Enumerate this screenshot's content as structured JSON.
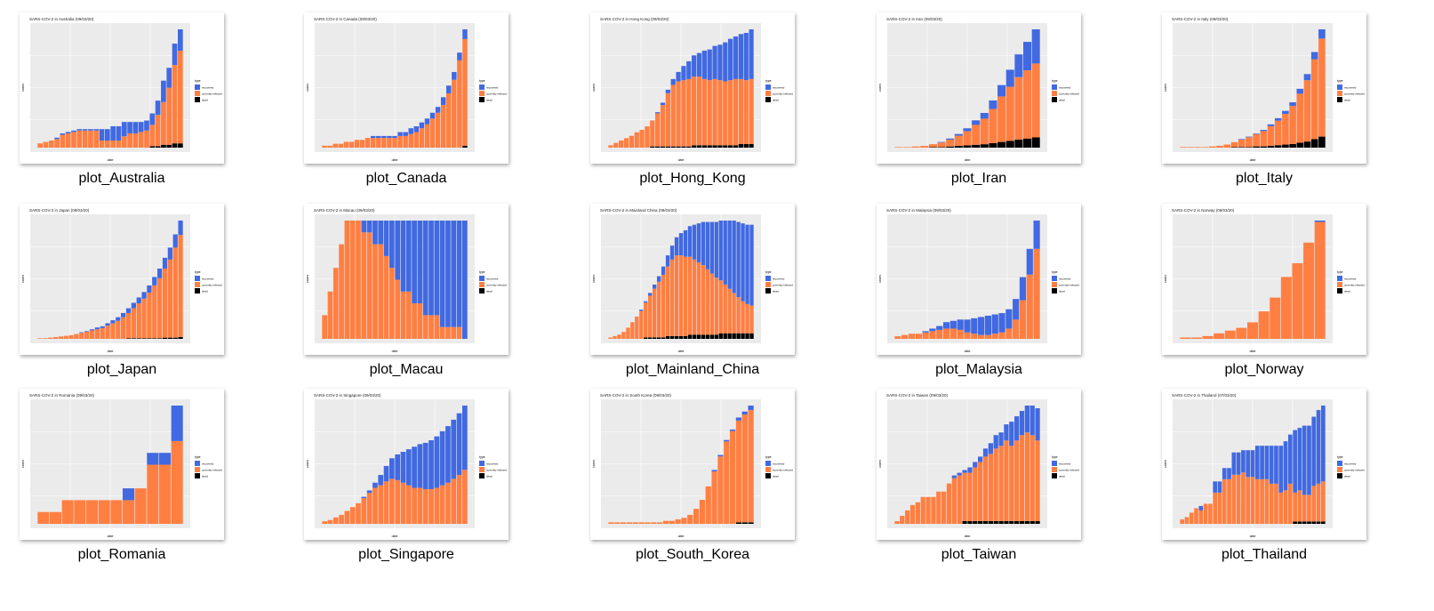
{
  "legend": {
    "title": "type",
    "items": [
      "recovered",
      "currently infected",
      "dead"
    ]
  },
  "axis": {
    "xlabel": "date",
    "ylabel": "cases"
  },
  "colors": {
    "recovered": "#4169e1",
    "infected": "#ff7f42",
    "dead": "#000000",
    "panel": "#ebebeb"
  },
  "files": [
    {
      "label": "plot_Australia",
      "chart_data": {
        "type": "bar",
        "title": "SARS-COV-2 in Australia (09/03/20)",
        "infected": [
          3,
          4,
          5,
          6,
          9,
          10,
          11,
          12,
          12,
          12,
          12,
          5,
          5,
          5,
          5,
          8,
          10,
          10,
          11,
          12,
          15,
          22,
          30,
          40,
          55,
          65
        ],
        "recovered": [
          0,
          0,
          0,
          1,
          1,
          1,
          1,
          1,
          1,
          1,
          1,
          8,
          8,
          10,
          10,
          10,
          8,
          8,
          7,
          7,
          8,
          10,
          15,
          14,
          15,
          15
        ],
        "dead": [
          0,
          0,
          0,
          0,
          0,
          0,
          0,
          0,
          0,
          0,
          0,
          0,
          0,
          0,
          0,
          0,
          0,
          0,
          0,
          0,
          1,
          1,
          2,
          2,
          3,
          3
        ]
      }
    },
    {
      "label": "plot_Canada",
      "chart_data": {
        "type": "bar",
        "title": "SARS-COV-2 in Canada (09/03/20)",
        "infected": [
          1,
          1,
          2,
          2,
          3,
          3,
          4,
          4,
          5,
          5,
          5,
          5,
          5,
          5,
          6,
          6,
          7,
          8,
          10,
          12,
          15,
          18,
          22,
          28,
          35,
          45,
          55
        ],
        "recovered": [
          0,
          0,
          0,
          0,
          0,
          0,
          0,
          0,
          0,
          1,
          1,
          1,
          1,
          1,
          2,
          2,
          3,
          3,
          3,
          3,
          3,
          3,
          4,
          4,
          4,
          4,
          5
        ],
        "dead": [
          0,
          0,
          0,
          0,
          0,
          0,
          0,
          0,
          0,
          0,
          0,
          0,
          0,
          0,
          0,
          0,
          0,
          0,
          0,
          0,
          0,
          0,
          0,
          0,
          0,
          0,
          1
        ]
      }
    },
    {
      "label": "plot_Hong_Kong",
      "chart_data": {
        "type": "bar",
        "title": "SARS-COV-2 in Hong Kong (09/03/20)",
        "infected": [
          2,
          4,
          6,
          8,
          10,
          13,
          15,
          18,
          22,
          28,
          35,
          45,
          52,
          55,
          56,
          57,
          58,
          58,
          56,
          55,
          56,
          55,
          54,
          55,
          56,
          55,
          54,
          55
        ],
        "recovered": [
          0,
          0,
          0,
          0,
          0,
          0,
          0,
          0,
          0,
          1,
          2,
          3,
          5,
          8,
          12,
          15,
          18,
          20,
          24,
          26,
          28,
          30,
          33,
          35,
          36,
          38,
          40,
          42
        ],
        "dead": [
          0,
          0,
          0,
          0,
          0,
          0,
          0,
          0,
          1,
          1,
          1,
          1,
          1,
          1,
          1,
          1,
          2,
          2,
          2,
          2,
          2,
          2,
          2,
          2,
          2,
          3,
          3,
          3
        ]
      }
    },
    {
      "label": "plot_Iran",
      "chart_data": {
        "type": "bar",
        "title": "SARS-COV-2 in Iran (09/03/20)",
        "infected": [
          1,
          1,
          2,
          3,
          5,
          8,
          12,
          18,
          25,
          35,
          45,
          60,
          80,
          95,
          110,
          120,
          130
        ],
        "recovered": [
          0,
          0,
          0,
          0,
          0,
          1,
          2,
          3,
          5,
          8,
          10,
          15,
          20,
          30,
          40,
          50,
          60
        ],
        "dead": [
          0,
          0,
          0,
          0,
          1,
          1,
          2,
          3,
          4,
          5,
          6,
          8,
          10,
          12,
          14,
          16,
          18
        ]
      }
    },
    {
      "label": "plot_Italy",
      "chart_data": {
        "type": "bar",
        "title": "SARS-COV-2 in Italy (09/03/20)",
        "infected": [
          1,
          1,
          1,
          1,
          2,
          3,
          5,
          8,
          12,
          16,
          20,
          25,
          32,
          40,
          50,
          62,
          80,
          100,
          130,
          160
        ],
        "recovered": [
          0,
          0,
          0,
          0,
          0,
          0,
          0,
          0,
          1,
          1,
          1,
          2,
          3,
          4,
          5,
          6,
          8,
          10,
          12,
          15
        ],
        "dead": [
          0,
          0,
          0,
          0,
          0,
          0,
          0,
          1,
          1,
          1,
          2,
          2,
          3,
          4,
          5,
          6,
          8,
          10,
          14,
          18
        ]
      }
    },
    {
      "label": "plot_Japan",
      "chart_data": {
        "type": "bar",
        "title": "SARS-COV-2 in Japan (09/03/20)",
        "infected": [
          1,
          1,
          2,
          3,
          4,
          5,
          6,
          8,
          10,
          12,
          14,
          16,
          18,
          22,
          26,
          30,
          36,
          42,
          50,
          58,
          66,
          76,
          88,
          100,
          115,
          130,
          150,
          170
        ],
        "recovered": [
          0,
          0,
          0,
          0,
          0,
          0,
          0,
          0,
          1,
          1,
          2,
          3,
          3,
          4,
          5,
          6,
          7,
          8,
          9,
          10,
          11,
          12,
          14,
          16,
          18,
          20,
          22,
          24
        ],
        "dead": [
          0,
          0,
          0,
          0,
          0,
          0,
          0,
          0,
          0,
          0,
          0,
          0,
          0,
          0,
          0,
          0,
          0,
          1,
          1,
          1,
          1,
          1,
          1,
          1,
          2,
          2,
          2,
          3
        ]
      }
    },
    {
      "label": "plot_Macau",
      "chart_data": {
        "type": "bar",
        "title": "SARS-COV-2 in Macau (09/03/20)",
        "infected": [
          2,
          4,
          6,
          8,
          10,
          10,
          10,
          9,
          9,
          8,
          8,
          7,
          6,
          5,
          4,
          4,
          3,
          3,
          2,
          2,
          2,
          1,
          1,
          1,
          1,
          0
        ],
        "recovered": [
          0,
          0,
          0,
          0,
          0,
          0,
          0,
          1,
          1,
          2,
          2,
          3,
          4,
          5,
          6,
          6,
          7,
          7,
          8,
          8,
          8,
          9,
          9,
          9,
          9,
          10
        ],
        "dead": [
          0,
          0,
          0,
          0,
          0,
          0,
          0,
          0,
          0,
          0,
          0,
          0,
          0,
          0,
          0,
          0,
          0,
          0,
          0,
          0,
          0,
          0,
          0,
          0,
          0,
          0
        ]
      }
    },
    {
      "label": "plot_Mainland_China",
      "chart_data": {
        "type": "bar",
        "title": "SARS-COV-2 in Mainland China (09/03/20)",
        "infected": [
          1,
          2,
          3,
          5,
          8,
          12,
          16,
          20,
          25,
          30,
          35,
          40,
          45,
          50,
          55,
          58,
          58,
          57,
          56,
          54,
          52,
          50,
          47,
          44,
          41,
          38,
          35,
          32,
          29,
          26,
          23,
          21,
          20
        ],
        "recovered": [
          0,
          0,
          0,
          0,
          0,
          0,
          0,
          1,
          1,
          2,
          3,
          4,
          6,
          8,
          10,
          13,
          16,
          19,
          22,
          25,
          28,
          31,
          34,
          37,
          40,
          43,
          46,
          49,
          52,
          54,
          56,
          57,
          58
        ],
        "dead": [
          0,
          0,
          0,
          0,
          0,
          0,
          0,
          0,
          1,
          1,
          1,
          1,
          1,
          2,
          2,
          2,
          2,
          2,
          3,
          3,
          3,
          3,
          3,
          3,
          3,
          4,
          4,
          4,
          4,
          4,
          4,
          4,
          4
        ]
      }
    },
    {
      "label": "plot_Malaysia",
      "chart_data": {
        "type": "bar",
        "title": "SARS-COV-2 in Malaysia (09/03/20)",
        "infected": [
          2,
          3,
          4,
          4,
          5,
          6,
          7,
          8,
          8,
          7,
          5,
          4,
          3,
          3,
          4,
          5,
          8,
          15,
          30,
          50,
          70
        ],
        "recovered": [
          0,
          0,
          0,
          0,
          1,
          2,
          3,
          5,
          6,
          8,
          10,
          12,
          14,
          15,
          15,
          15,
          15,
          16,
          18,
          20,
          22
        ],
        "dead": [
          0,
          0,
          0,
          0,
          0,
          0,
          0,
          0,
          0,
          0,
          0,
          0,
          0,
          0,
          0,
          0,
          0,
          0,
          0,
          0,
          0
        ]
      }
    },
    {
      "label": "plot_Norway",
      "chart_data": {
        "type": "bar",
        "title": "SARS-COV-2 in Norway (09/03/20)",
        "infected": [
          1,
          1,
          2,
          4,
          6,
          8,
          12,
          20,
          30,
          45,
          55,
          70,
          85
        ],
        "recovered": [
          0,
          0,
          0,
          0,
          0,
          0,
          0,
          0,
          0,
          0,
          0,
          0,
          1
        ],
        "dead": [
          0,
          0,
          0,
          0,
          0,
          0,
          0,
          0,
          0,
          0,
          0,
          0,
          0
        ]
      }
    },
    {
      "label": "plot_Romania",
      "chart_data": {
        "type": "bar",
        "title": "SARS-COV-2 in Romania (09/03/20)",
        "infected": [
          1,
          1,
          2,
          2,
          2,
          2,
          2,
          2,
          3,
          5,
          5,
          7
        ],
        "recovered": [
          0,
          0,
          0,
          0,
          0,
          0,
          0,
          1,
          0,
          1,
          1,
          3
        ],
        "dead": [
          0,
          0,
          0,
          0,
          0,
          0,
          0,
          0,
          0,
          0,
          0,
          0
        ]
      }
    },
    {
      "label": "plot_Singapore",
      "chart_data": {
        "type": "bar",
        "title": "SARS-COV-2 in Singapore (09/03/20)",
        "infected": [
          2,
          3,
          5,
          7,
          10,
          13,
          16,
          20,
          24,
          28,
          30,
          33,
          35,
          34,
          32,
          30,
          28,
          28,
          27,
          27,
          28,
          30,
          32,
          35,
          38,
          42
        ],
        "recovered": [
          0,
          0,
          0,
          0,
          0,
          0,
          0,
          1,
          2,
          4,
          8,
          12,
          16,
          20,
          24,
          28,
          32,
          34,
          36,
          38,
          40,
          42,
          44,
          46,
          48,
          50
        ],
        "dead": [
          0,
          0,
          0,
          0,
          0,
          0,
          0,
          0,
          0,
          0,
          0,
          0,
          0,
          0,
          0,
          0,
          0,
          0,
          0,
          0,
          0,
          0,
          0,
          0,
          0,
          0
        ]
      }
    },
    {
      "label": "plot_South_Korea",
      "chart_data": {
        "type": "bar",
        "title": "SARS-COV-2 in South Korea (09/03/20)",
        "infected": [
          1,
          1,
          1,
          1,
          1,
          1,
          1,
          1,
          1,
          2,
          2,
          3,
          4,
          6,
          10,
          16,
          25,
          35,
          45,
          55,
          62,
          68,
          72,
          75
        ],
        "recovered": [
          0,
          0,
          0,
          0,
          0,
          0,
          0,
          0,
          0,
          0,
          0,
          0,
          0,
          0,
          0,
          0,
          0,
          1,
          1,
          1,
          1,
          2,
          2,
          3
        ],
        "dead": [
          0,
          0,
          0,
          0,
          0,
          0,
          0,
          0,
          0,
          0,
          0,
          0,
          0,
          0,
          0,
          0,
          0,
          0,
          0,
          0,
          0,
          1,
          1,
          1
        ]
      }
    },
    {
      "label": "plot_Taiwan",
      "chart_data": {
        "type": "bar",
        "title": "SARS-COV-2 in Taiwan (09/03/20)",
        "infected": [
          1,
          3,
          5,
          7,
          8,
          10,
          10,
          10,
          12,
          12,
          15,
          17,
          18,
          18,
          18,
          20,
          22,
          24,
          25,
          27,
          28,
          30,
          28,
          30,
          32,
          33,
          32,
          30
        ],
        "recovered": [
          0,
          0,
          0,
          0,
          0,
          0,
          0,
          0,
          0,
          0,
          0,
          1,
          1,
          1,
          2,
          2,
          2,
          3,
          4,
          5,
          5,
          6,
          9,
          9,
          9,
          10,
          11,
          12
        ],
        "dead": [
          0,
          0,
          0,
          0,
          0,
          0,
          0,
          0,
          0,
          0,
          0,
          0,
          0,
          1,
          1,
          1,
          1,
          1,
          1,
          1,
          1,
          1,
          1,
          1,
          1,
          1,
          1,
          1
        ]
      }
    },
    {
      "label": "plot_Thailand",
      "chart_data": {
        "type": "bar",
        "title": "SARS-COV-2 in Thailand (07/03/20)",
        "infected": [
          2,
          3,
          5,
          7,
          6,
          9,
          9,
          14,
          14,
          20,
          20,
          22,
          22,
          23,
          21,
          21,
          20,
          20,
          20,
          18,
          18,
          14,
          15,
          18,
          13,
          14,
          12,
          12,
          16,
          17,
          18
        ],
        "recovered": [
          0,
          0,
          0,
          0,
          2,
          0,
          0,
          5,
          5,
          5,
          5,
          10,
          10,
          10,
          12,
          12,
          15,
          15,
          15,
          17,
          17,
          21,
          22,
          22,
          28,
          28,
          31,
          31,
          31,
          33,
          34
        ],
        "dead": [
          0,
          0,
          0,
          0,
          0,
          0,
          0,
          0,
          0,
          0,
          0,
          0,
          0,
          0,
          0,
          0,
          0,
          0,
          0,
          0,
          0,
          0,
          0,
          0,
          1,
          1,
          1,
          1,
          1,
          1,
          1
        ]
      }
    }
  ]
}
